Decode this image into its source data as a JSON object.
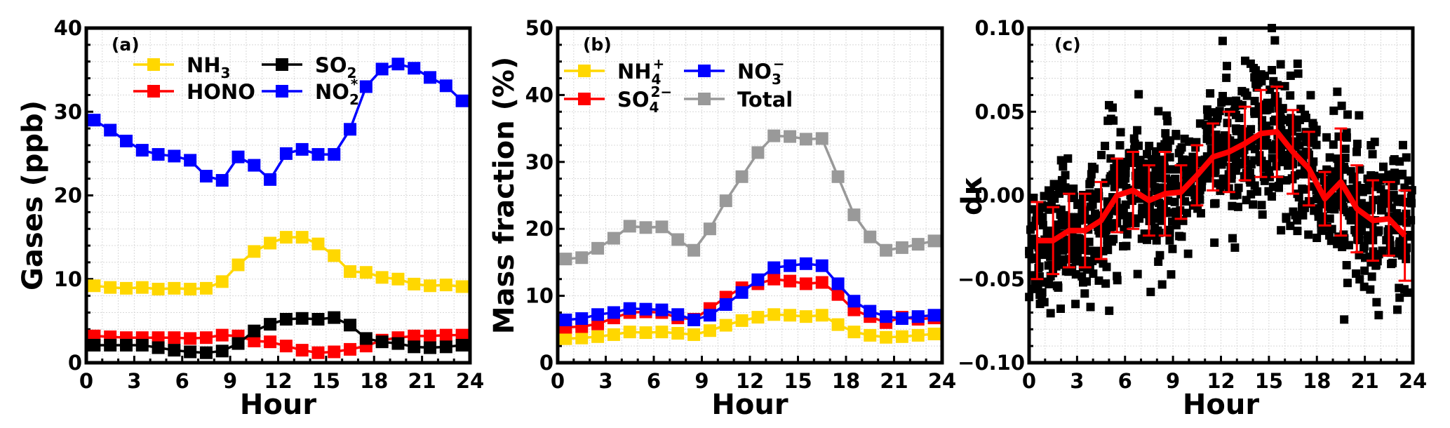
{
  "chart_data": [
    {
      "type": "line",
      "panel_label": "(a)",
      "xlabel": "Hour",
      "ylabel": "Gases (ppb)",
      "xlim": [
        0,
        24
      ],
      "ylim": [
        0,
        40
      ],
      "xticks": [
        "0",
        "3",
        "6",
        "9",
        "12",
        "15",
        "18",
        "21",
        "24"
      ],
      "yticks": [
        "0",
        "10",
        "20",
        "30",
        "40"
      ],
      "grid": true,
      "legend_placement": "top-left",
      "x": [
        0.5,
        1.5,
        2.5,
        3.5,
        4.5,
        5.5,
        6.5,
        7.5,
        8.5,
        9.5,
        10.5,
        11.5,
        12.5,
        13.5,
        14.5,
        15.5,
        16.5,
        17.5,
        18.5,
        19.5,
        20.5,
        21.5,
        22.5,
        23.5
      ],
      "series": [
        {
          "name": "NH3",
          "base": "NH",
          "sub": "3",
          "sup": "",
          "color": "#FFD700",
          "values": [
            9.2,
            9.0,
            8.9,
            9.0,
            8.8,
            8.9,
            8.8,
            8.9,
            9.7,
            11.7,
            13.3,
            14.3,
            15.0,
            15.0,
            14.2,
            12.8,
            10.9,
            10.8,
            10.2,
            10.0,
            9.4,
            9.2,
            9.3,
            9.1
          ]
        },
        {
          "name": "HONO",
          "base": "HONO",
          "sub": "",
          "sup": "",
          "color": "#FF0000",
          "values": [
            3.2,
            3.1,
            3.0,
            3.0,
            3.0,
            3.0,
            2.9,
            3.0,
            3.3,
            3.2,
            2.6,
            2.5,
            2.0,
            1.5,
            1.2,
            1.3,
            1.6,
            2.0,
            2.7,
            3.0,
            3.2,
            3.2,
            3.3,
            3.3
          ]
        },
        {
          "name": "SO2",
          "base": "SO",
          "sub": "2",
          "sup": "",
          "color": "#000000",
          "values": [
            2.1,
            2.1,
            2.1,
            2.1,
            1.8,
            1.5,
            1.3,
            1.2,
            1.4,
            2.3,
            3.8,
            4.6,
            5.2,
            5.3,
            5.2,
            5.4,
            4.5,
            2.9,
            2.5,
            2.3,
            1.9,
            1.8,
            1.9,
            2.1
          ]
        },
        {
          "name": "NO2*",
          "base": "NO",
          "sub": "2",
          "sup": "*",
          "color": "#0000FF",
          "values": [
            29.0,
            27.8,
            26.5,
            25.4,
            24.9,
            24.7,
            24.2,
            22.3,
            21.8,
            24.6,
            23.6,
            21.9,
            25.0,
            25.5,
            24.9,
            24.9,
            27.9,
            33.0,
            35.1,
            35.7,
            35.2,
            34.1,
            33.1,
            31.3
          ]
        }
      ]
    },
    {
      "type": "line",
      "panel_label": "(b)",
      "xlabel": "Hour",
      "ylabel": "Mass fraction (%)",
      "xlim": [
        0,
        24
      ],
      "ylim": [
        0,
        50
      ],
      "xticks": [
        "0",
        "3",
        "6",
        "9",
        "12",
        "15",
        "18",
        "21",
        "24"
      ],
      "yticks": [
        "0",
        "10",
        "20",
        "30",
        "40",
        "50"
      ],
      "grid": true,
      "legend_placement": "top-left",
      "x": [
        0.5,
        1.5,
        2.5,
        3.5,
        4.5,
        5.5,
        6.5,
        7.5,
        8.5,
        9.5,
        10.5,
        11.5,
        12.5,
        13.5,
        14.5,
        15.5,
        16.5,
        17.5,
        18.5,
        19.5,
        20.5,
        21.5,
        22.5,
        23.5
      ],
      "series": [
        {
          "name": "Total",
          "base": "Total",
          "sub": "",
          "sup": "",
          "color": "#999999",
          "values": [
            15.5,
            15.7,
            17.1,
            18.6,
            20.4,
            20.2,
            20.3,
            18.4,
            16.8,
            20.0,
            24.2,
            27.8,
            31.4,
            33.9,
            33.8,
            33.4,
            33.5,
            27.8,
            22.1,
            18.8,
            16.8,
            17.2,
            17.7,
            18.2
          ]
        },
        {
          "name": "NH4+",
          "base": "NH",
          "sub": "4",
          "sup": "+",
          "color": "#FFD700",
          "values": [
            3.6,
            3.7,
            3.9,
            4.2,
            4.6,
            4.5,
            4.6,
            4.4,
            4.2,
            4.8,
            5.6,
            6.3,
            6.8,
            7.2,
            7.1,
            6.9,
            7.1,
            5.7,
            4.6,
            4.1,
            3.8,
            3.9,
            4.1,
            4.3
          ]
        },
        {
          "name": "SO4 2-",
          "base": "SO",
          "sub": "4",
          "sup": "2−",
          "color": "#FF0000",
          "values": [
            5.3,
            5.4,
            5.8,
            6.7,
            7.5,
            7.6,
            7.5,
            6.7,
            6.5,
            8.1,
            9.8,
            11.2,
            11.8,
            12.5,
            12.2,
            11.8,
            12.0,
            10.2,
            7.9,
            6.9,
            6.0,
            6.8,
            6.5,
            6.7
          ]
        },
        {
          "name": "NO3-",
          "base": "NO",
          "sub": "3",
          "sup": "−",
          "color": "#0000FF",
          "values": [
            6.4,
            6.6,
            7.2,
            7.5,
            8.1,
            8.0,
            7.9,
            7.2,
            6.4,
            7.1,
            8.7,
            10.5,
            12.4,
            14.2,
            14.5,
            14.8,
            14.5,
            11.8,
            9.2,
            7.7,
            6.9,
            6.6,
            6.9,
            7.1
          ]
        }
      ],
      "legend_order": [
        "NH4+",
        "NO3-",
        "SO4 2-",
        "Total"
      ]
    },
    {
      "type": "scatter",
      "panel_label": "(c)",
      "xlabel": "Hour",
      "ylabel": "dκ",
      "xlim": [
        0,
        24
      ],
      "ylim": [
        -0.1,
        0.1
      ],
      "xticks": [
        "0",
        "3",
        "6",
        "9",
        "12",
        "15",
        "18",
        "21",
        "24"
      ],
      "yticks": [
        "−0.10",
        "−0.05",
        "0.00",
        "0.05",
        "0.10"
      ],
      "grid": true,
      "x": [
        0.5,
        1.5,
        2.5,
        3.5,
        4.5,
        5.5,
        6.5,
        7.5,
        8.5,
        9.5,
        10.5,
        11.5,
        12.5,
        13.5,
        14.5,
        15.5,
        16.5,
        17.5,
        18.5,
        19.5,
        20.5,
        21.5,
        22.5,
        23.5
      ],
      "mean": {
        "color": "#FF0000",
        "values": [
          -0.027,
          -0.027,
          -0.021,
          -0.021,
          -0.015,
          0.0,
          0.003,
          -0.003,
          0.001,
          0.002,
          0.012,
          0.023,
          0.026,
          0.031,
          0.037,
          0.038,
          0.026,
          0.016,
          -0.002,
          0.008,
          -0.008,
          -0.015,
          -0.014,
          -0.024
        ],
        "std": [
          0.023,
          0.02,
          0.022,
          0.022,
          0.023,
          0.022,
          0.023,
          0.021,
          0.025,
          0.016,
          0.018,
          0.02,
          0.024,
          0.022,
          0.026,
          0.027,
          0.025,
          0.022,
          0.016,
          0.032,
          0.026,
          0.024,
          0.022,
          0.027
        ]
      },
      "scatter": {
        "color": "#000000",
        "points_per_hour": 45
      }
    }
  ]
}
